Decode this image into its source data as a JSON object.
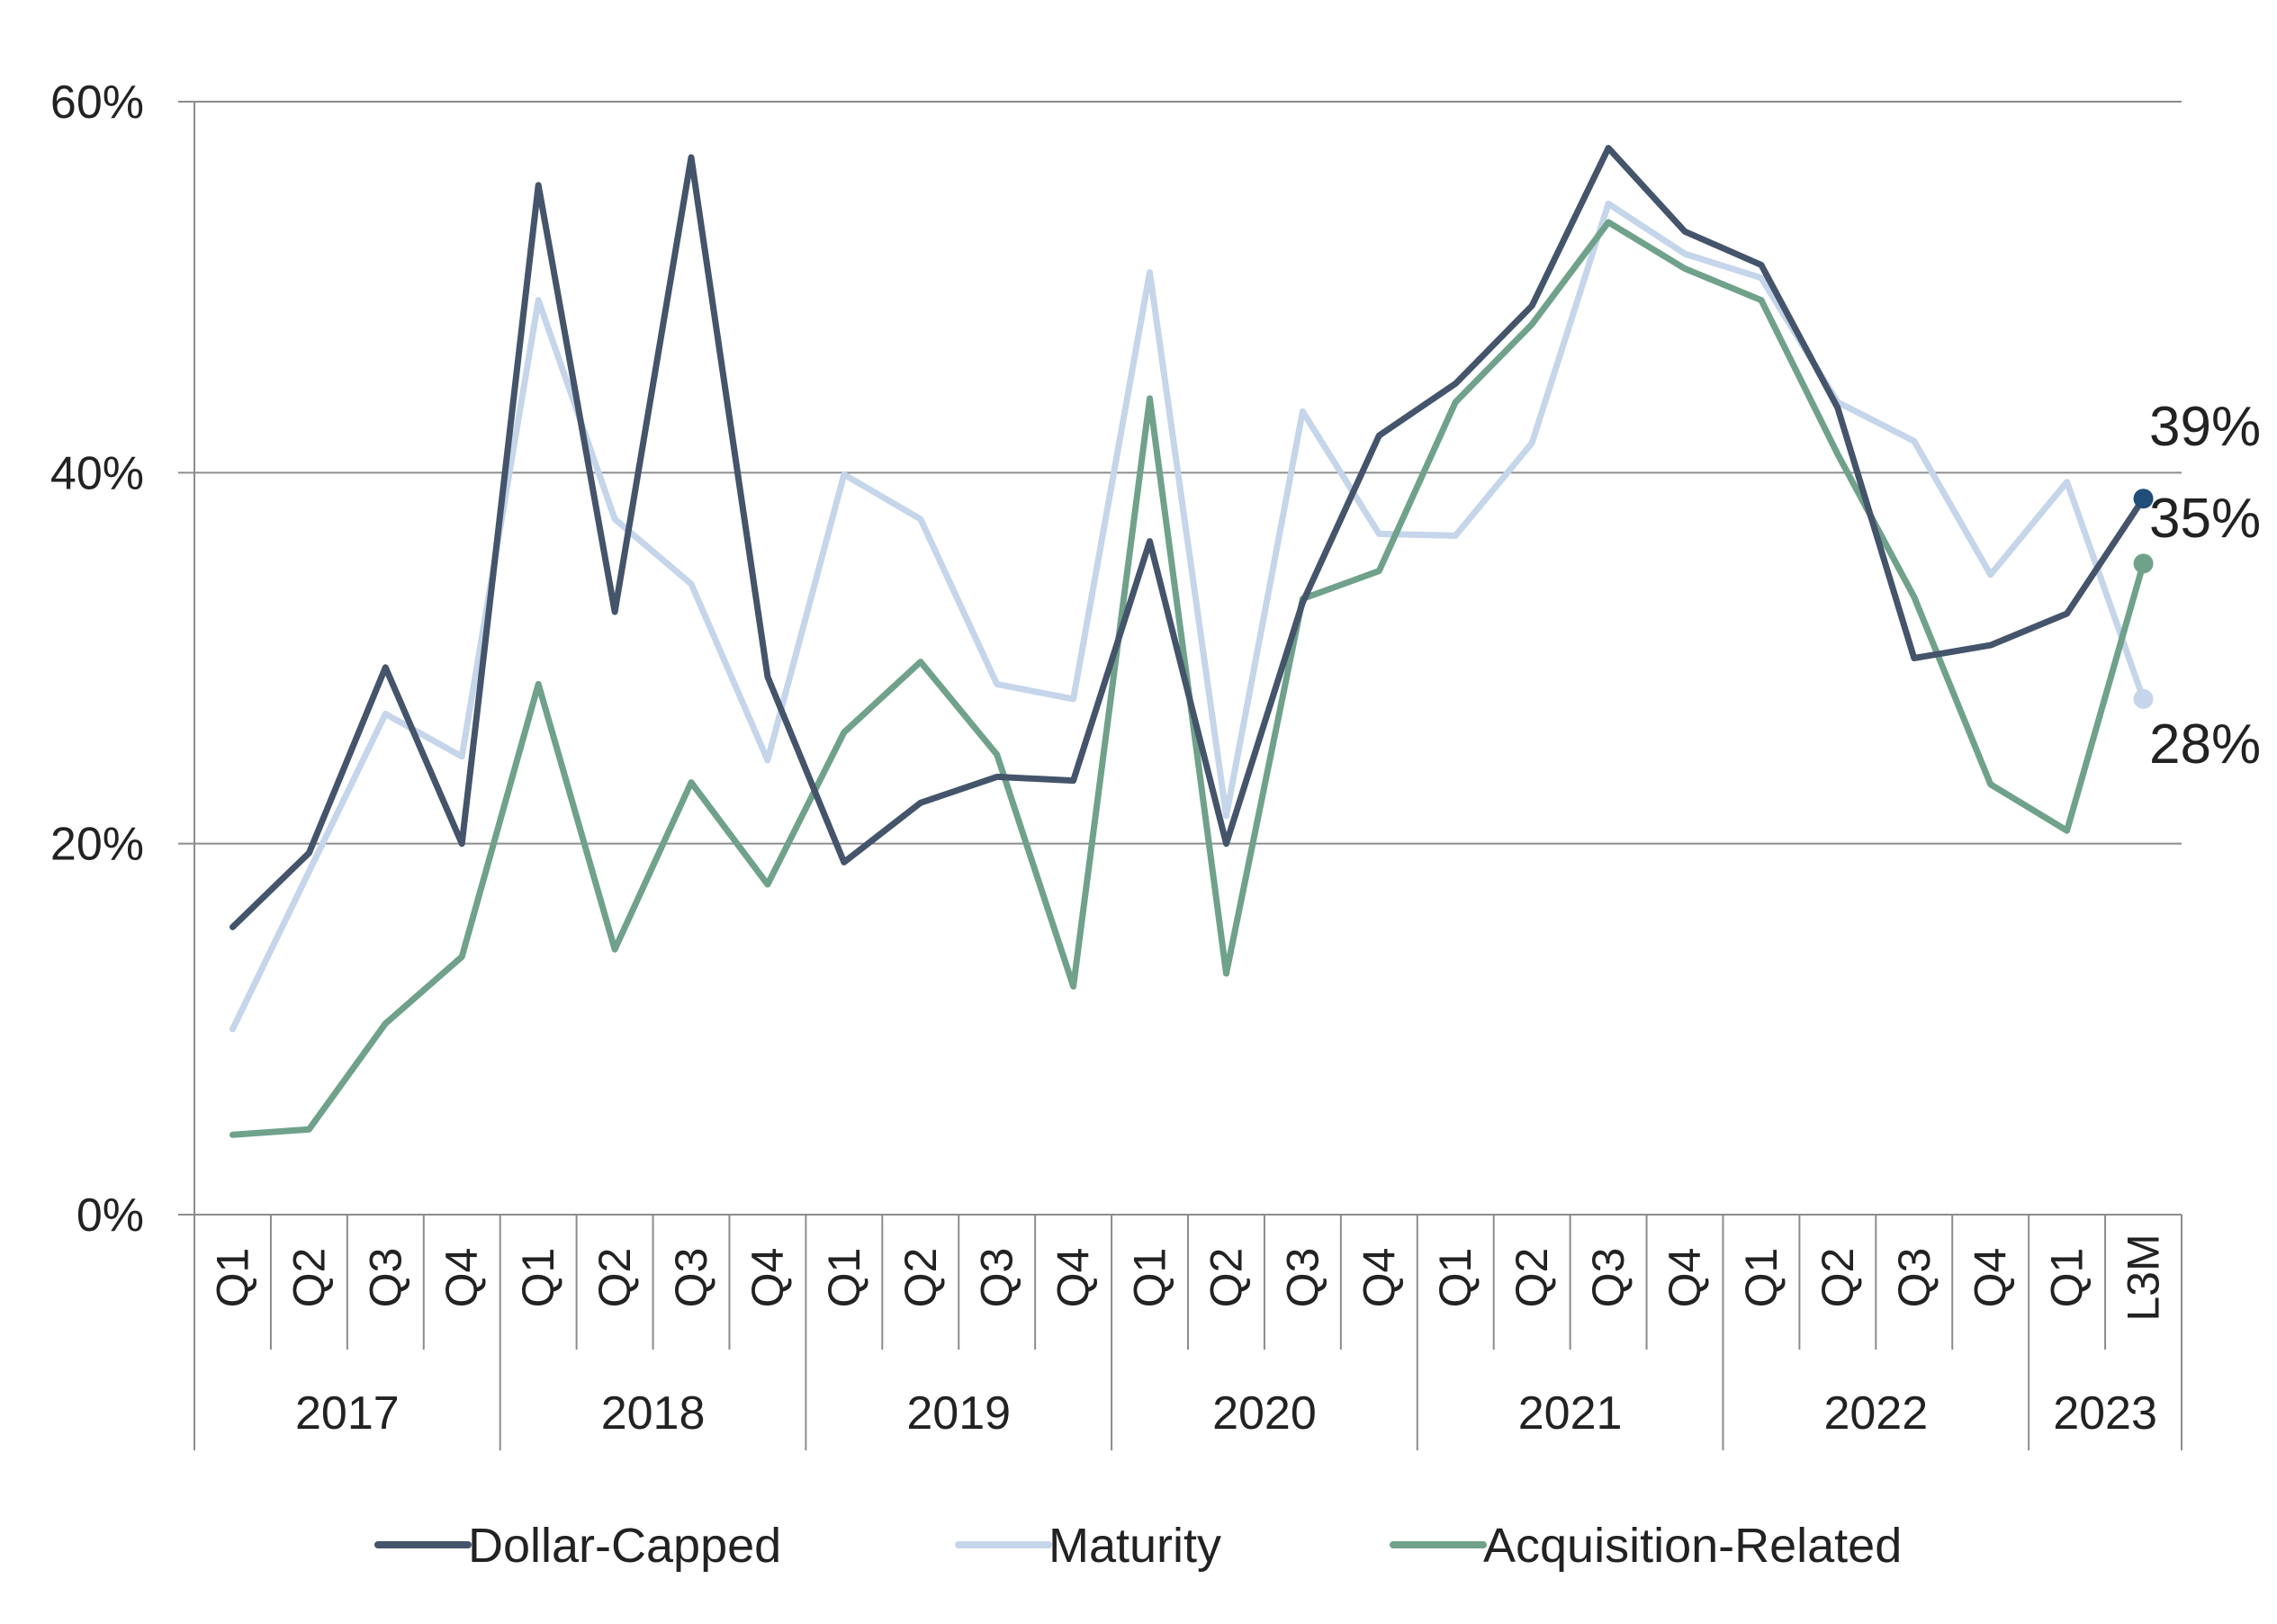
{
  "chart_data": {
    "type": "line",
    "title": "",
    "xlabel": "",
    "ylabel": "",
    "ylim": [
      0,
      60
    ],
    "y_ticks": [
      "0%",
      "20%",
      "40%",
      "60%"
    ],
    "y_tick_values": [
      0,
      20,
      40,
      60
    ],
    "grid": "horizontal",
    "legend_position": "bottom",
    "categories": [
      "Q1",
      "Q2",
      "Q3",
      "Q4",
      "Q1",
      "Q2",
      "Q3",
      "Q4",
      "Q1",
      "Q2",
      "Q3",
      "Q4",
      "Q1",
      "Q2",
      "Q3",
      "Q4",
      "Q1",
      "Q2",
      "Q3",
      "Q4",
      "Q1",
      "Q2",
      "Q3",
      "Q4",
      "Q1",
      "L3M"
    ],
    "year_groups": [
      {
        "label": "2017",
        "count": 4
      },
      {
        "label": "2018",
        "count": 4
      },
      {
        "label": "2019",
        "count": 4
      },
      {
        "label": "2020",
        "count": 4
      },
      {
        "label": "2021",
        "count": 4
      },
      {
        "label": "2022",
        "count": 4
      },
      {
        "label": "2023",
        "count": 2
      }
    ],
    "series": [
      {
        "name": "Dollar-Capped",
        "color": "#44546a",
        "end_label": "39%",
        "end_marker_color": "#1f4e79",
        "values": [
          15.5,
          19.5,
          29.5,
          20,
          55.5,
          32.5,
          57,
          29,
          19,
          22.2,
          23.6,
          23.4,
          36.3,
          20,
          33,
          42,
          44.8,
          49,
          57.5,
          53,
          51.2,
          43.5,
          30,
          30.7,
          32.4,
          38.6
        ]
      },
      {
        "name": "Maturity",
        "color": "#c5d5ea",
        "end_label": "28%",
        "end_marker_color": "#c5d5ea",
        "values": [
          10,
          18.5,
          27,
          24.7,
          49.3,
          37.5,
          34,
          24.5,
          39.9,
          37.5,
          28.6,
          27.8,
          50.8,
          21.5,
          43.3,
          36.7,
          36.6,
          41.6,
          54.5,
          51.8,
          50.5,
          43.8,
          41.7,
          34.5,
          39.5,
          27.8
        ]
      },
      {
        "name": "Acquisition-Related",
        "color": "#6fa18b",
        "end_label": "35%",
        "end_marker_color": "#6fa18b",
        "values": [
          4.3,
          4.6,
          10.3,
          13.9,
          28.6,
          14.3,
          23.3,
          17.8,
          26,
          29.8,
          24.8,
          12.3,
          44,
          13,
          33.2,
          34.7,
          43.8,
          48,
          53.5,
          51,
          49.3,
          41,
          33.3,
          23.2,
          20.7,
          35.1
        ]
      }
    ]
  }
}
